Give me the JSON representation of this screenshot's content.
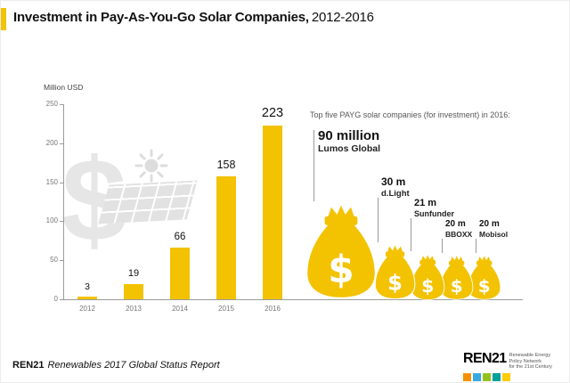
{
  "colors": {
    "accent": "#F3C200",
    "watermark": "#E6E6E6",
    "axis": "#9A9A9A"
  },
  "header": {
    "title_bold": "Investment in Pay-As-You-Go Solar Companies,",
    "title_rest": "2012-2016"
  },
  "chart_data": {
    "type": "bar",
    "title": "Investment in Pay-As-You-Go Solar Companies, 2012-2016",
    "ylabel": "Million USD",
    "xlabel": "",
    "categories": [
      "2012",
      "2013",
      "2014",
      "2015",
      "2016"
    ],
    "values": [
      3,
      19,
      66,
      158,
      223
    ],
    "ylim": [
      0,
      250
    ],
    "yticks": [
      0,
      50,
      100,
      150,
      200,
      250
    ],
    "grid": false,
    "bar_color": "#F3C200",
    "annotation": {
      "heading": "Top five PAYG solar companies (for investment) in 2016:",
      "companies": [
        {
          "value": 90,
          "amount": "90 million",
          "name": "Lumos Global"
        },
        {
          "value": 30,
          "amount": "30 m",
          "name": "d.Light"
        },
        {
          "value": 21,
          "amount": "21 m",
          "name": "Sunfunder"
        },
        {
          "value": 20,
          "amount": "20 m",
          "name": "BBOXX"
        },
        {
          "value": 20,
          "amount": "20 m",
          "name": "Mobisol"
        }
      ]
    }
  },
  "companies": {
    "heading": "Top five PAYG solar companies (for investment) in 2016:",
    "bag_symbol": "$",
    "items": [
      {
        "value": 90,
        "amount": "90 million",
        "name": "Lumos Global"
      },
      {
        "value": 30,
        "amount": "30 m",
        "name": "d.Light"
      },
      {
        "value": 21,
        "amount": "21 m",
        "name": "Sunfunder"
      },
      {
        "value": 20,
        "amount": "20 m",
        "name": "BBOXX"
      },
      {
        "value": 20,
        "amount": "20 m",
        "name": "Mobisol"
      }
    ]
  },
  "footer": {
    "source_bold": "REN21",
    "source_italic": "Renewables 2017 Global Status Report",
    "logo": {
      "name": "REN21",
      "tagline_lines": [
        "Renewable Energy",
        "Policy Network",
        "for the 21st Century"
      ],
      "icon_colors": [
        "#F39200",
        "#36A9E1",
        "#95C11F",
        "#00A19A",
        "#FFCC00"
      ]
    }
  }
}
